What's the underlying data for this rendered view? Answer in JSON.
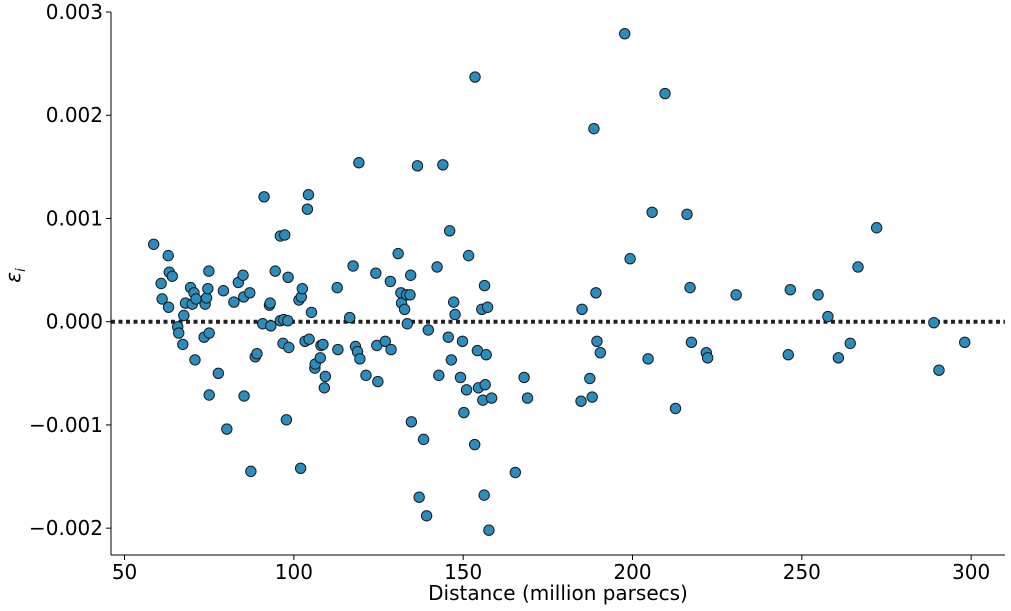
{
  "chart_data": {
    "type": "scatter",
    "title": "",
    "xlabel": "Distance (million parsecs)",
    "ylabel": "εi",
    "ylabel_base": "ε",
    "ylabel_sub": "i",
    "xlim": [
      46,
      310
    ],
    "ylim": [
      -0.00226,
      0.003
    ],
    "xticks": [
      50,
      100,
      150,
      200,
      250,
      300
    ],
    "xtick_labels": [
      "50",
      "100",
      "150",
      "200",
      "250",
      "300"
    ],
    "yticks": [
      -0.002,
      -0.001,
      0.0,
      0.001,
      0.002,
      0.003
    ],
    "ytick_labels": [
      "−0.002",
      "−0.001",
      "0.000",
      "0.001",
      "0.002",
      "0.003"
    ],
    "grid": false,
    "reference_line": {
      "y": 0.0,
      "style": "dotted"
    },
    "marker_color": "#2b8cbe",
    "marker_edge": "#1a1a1a",
    "points": [
      {
        "x": 58.6,
        "y": 0.00075
      },
      {
        "x": 60.8,
        "y": 0.00037
      },
      {
        "x": 61.1,
        "y": 0.00022
      },
      {
        "x": 62.9,
        "y": 0.00064
      },
      {
        "x": 63.0,
        "y": 0.00014
      },
      {
        "x": 63.2,
        "y": 0.00048
      },
      {
        "x": 64.1,
        "y": 0.00044
      },
      {
        "x": 65.7,
        "y": -5e-05
      },
      {
        "x": 66.0,
        "y": -0.00011
      },
      {
        "x": 67.2,
        "y": -0.00022
      },
      {
        "x": 67.5,
        "y": 6e-05
      },
      {
        "x": 68.0,
        "y": 0.00018
      },
      {
        "x": 69.5,
        "y": 0.00033
      },
      {
        "x": 70.0,
        "y": 0.00017
      },
      {
        "x": 70.5,
        "y": 0.00028
      },
      {
        "x": 70.8,
        "y": -0.00037
      },
      {
        "x": 71.1,
        "y": 0.00022
      },
      {
        "x": 73.5,
        "y": -0.00015
      },
      {
        "x": 73.8,
        "y": 0.00017
      },
      {
        "x": 74.2,
        "y": 0.00023
      },
      {
        "x": 74.6,
        "y": 0.00032
      },
      {
        "x": 74.9,
        "y": 0.00049
      },
      {
        "x": 75.0,
        "y": -0.00011
      },
      {
        "x": 75.0,
        "y": -0.00071
      },
      {
        "x": 77.7,
        "y": -0.0005
      },
      {
        "x": 79.2,
        "y": 0.0003
      },
      {
        "x": 80.2,
        "y": -0.00104
      },
      {
        "x": 82.3,
        "y": 0.00019
      },
      {
        "x": 83.6,
        "y": 0.00038
      },
      {
        "x": 85.0,
        "y": 0.00045
      },
      {
        "x": 85.2,
        "y": 0.00024
      },
      {
        "x": 85.3,
        "y": -0.00072
      },
      {
        "x": 87.0,
        "y": 0.00028
      },
      {
        "x": 87.3,
        "y": -0.00145
      },
      {
        "x": 88.6,
        "y": -0.00034
      },
      {
        "x": 89.1,
        "y": -0.00031
      },
      {
        "x": 90.8,
        "y": -2e-05
      },
      {
        "x": 91.2,
        "y": 0.00121
      },
      {
        "x": 92.8,
        "y": 0.00016
      },
      {
        "x": 93.0,
        "y": 0.00018
      },
      {
        "x": 93.2,
        "y": -4e-05
      },
      {
        "x": 94.5,
        "y": 0.00049
      },
      {
        "x": 96.0,
        "y": 1e-05
      },
      {
        "x": 96.0,
        "y": 0.00083
      },
      {
        "x": 96.8,
        "y": -0.00021
      },
      {
        "x": 97.0,
        "y": 2e-05
      },
      {
        "x": 97.3,
        "y": 0.00084
      },
      {
        "x": 97.8,
        "y": -0.00095
      },
      {
        "x": 98.2,
        "y": 1e-05
      },
      {
        "x": 98.3,
        "y": 0.00043
      },
      {
        "x": 98.5,
        "y": -0.00025
      },
      {
        "x": 101.5,
        "y": 0.00021
      },
      {
        "x": 102.0,
        "y": -0.00142
      },
      {
        "x": 102.2,
        "y": 0.00024
      },
      {
        "x": 102.5,
        "y": 0.00032
      },
      {
        "x": 103.3,
        "y": -0.00019
      },
      {
        "x": 104.0,
        "y": 0.00109
      },
      {
        "x": 104.3,
        "y": 0.00123
      },
      {
        "x": 104.5,
        "y": -0.00017
      },
      {
        "x": 105.2,
        "y": 9e-05
      },
      {
        "x": 106.2,
        "y": -0.00045
      },
      {
        "x": 106.3,
        "y": -0.00041
      },
      {
        "x": 107.8,
        "y": -0.00035
      },
      {
        "x": 108.0,
        "y": -0.00023
      },
      {
        "x": 108.6,
        "y": -0.00022
      },
      {
        "x": 109.0,
        "y": -0.00064
      },
      {
        "x": 109.3,
        "y": -0.00053
      },
      {
        "x": 112.8,
        "y": 0.00033
      },
      {
        "x": 113.0,
        "y": -0.00027
      },
      {
        "x": 116.5,
        "y": 4e-05
      },
      {
        "x": 117.5,
        "y": 0.00054
      },
      {
        "x": 118.2,
        "y": -0.00024
      },
      {
        "x": 118.8,
        "y": -0.00029
      },
      {
        "x": 119.2,
        "y": 0.00154
      },
      {
        "x": 119.5,
        "y": -0.00036
      },
      {
        "x": 121.3,
        "y": -0.00052
      },
      {
        "x": 124.2,
        "y": 0.00047
      },
      {
        "x": 124.5,
        "y": -0.00023
      },
      {
        "x": 124.8,
        "y": -0.00058
      },
      {
        "x": 127.0,
        "y": -0.00019
      },
      {
        "x": 128.5,
        "y": 0.00039
      },
      {
        "x": 128.7,
        "y": -0.00027
      },
      {
        "x": 130.8,
        "y": 0.00066
      },
      {
        "x": 131.6,
        "y": 0.00028
      },
      {
        "x": 131.8,
        "y": 0.00018
      },
      {
        "x": 132.7,
        "y": 0.00012
      },
      {
        "x": 133.3,
        "y": 0.00026
      },
      {
        "x": 133.5,
        "y": -2e-05
      },
      {
        "x": 134.3,
        "y": 0.00026
      },
      {
        "x": 134.5,
        "y": 0.00045
      },
      {
        "x": 134.7,
        "y": -0.00097
      },
      {
        "x": 136.5,
        "y": 0.00151
      },
      {
        "x": 137.0,
        "y": -0.0017
      },
      {
        "x": 138.3,
        "y": -0.00114
      },
      {
        "x": 139.2,
        "y": -0.00188
      },
      {
        "x": 139.7,
        "y": -8e-05
      },
      {
        "x": 142.3,
        "y": 0.00053
      },
      {
        "x": 142.8,
        "y": -0.00052
      },
      {
        "x": 144.0,
        "y": 0.00152
      },
      {
        "x": 145.6,
        "y": -0.00015
      },
      {
        "x": 146.0,
        "y": 0.00088
      },
      {
        "x": 146.5,
        "y": -0.00037
      },
      {
        "x": 147.2,
        "y": 0.00019
      },
      {
        "x": 147.6,
        "y": 7e-05
      },
      {
        "x": 149.2,
        "y": -0.00054
      },
      {
        "x": 149.8,
        "y": -0.00019
      },
      {
        "x": 150.2,
        "y": -0.00088
      },
      {
        "x": 151.0,
        "y": -0.00066
      },
      {
        "x": 151.6,
        "y": 0.00064
      },
      {
        "x": 153.4,
        "y": -0.00119
      },
      {
        "x": 153.5,
        "y": 0.00237
      },
      {
        "x": 154.2,
        "y": -0.00028
      },
      {
        "x": 154.5,
        "y": -0.00064
      },
      {
        "x": 155.5,
        "y": 0.00012
      },
      {
        "x": 155.8,
        "y": -0.00076
      },
      {
        "x": 156.2,
        "y": -0.00168
      },
      {
        "x": 156.3,
        "y": 0.00035
      },
      {
        "x": 156.5,
        "y": -0.00061
      },
      {
        "x": 156.8,
        "y": -0.00032
      },
      {
        "x": 157.2,
        "y": 0.00014
      },
      {
        "x": 157.6,
        "y": -0.00202
      },
      {
        "x": 158.4,
        "y": -0.00074
      },
      {
        "x": 165.4,
        "y": -0.00146
      },
      {
        "x": 168.0,
        "y": -0.00054
      },
      {
        "x": 169.0,
        "y": -0.00074
      },
      {
        "x": 184.8,
        "y": -0.00077
      },
      {
        "x": 185.1,
        "y": 0.00012
      },
      {
        "x": 187.4,
        "y": -0.00055
      },
      {
        "x": 188.1,
        "y": -0.00073
      },
      {
        "x": 188.6,
        "y": 0.00187
      },
      {
        "x": 189.2,
        "y": 0.00028
      },
      {
        "x": 189.5,
        "y": -0.00019
      },
      {
        "x": 190.5,
        "y": -0.0003
      },
      {
        "x": 197.7,
        "y": 0.00279
      },
      {
        "x": 199.3,
        "y": 0.00061
      },
      {
        "x": 204.6,
        "y": -0.00036
      },
      {
        "x": 205.8,
        "y": 0.00106
      },
      {
        "x": 209.6,
        "y": 0.00221
      },
      {
        "x": 212.7,
        "y": -0.00084
      },
      {
        "x": 216.1,
        "y": 0.00104
      },
      {
        "x": 217.0,
        "y": 0.00033
      },
      {
        "x": 217.4,
        "y": -0.0002
      },
      {
        "x": 221.8,
        "y": -0.0003
      },
      {
        "x": 222.2,
        "y": -0.00035
      },
      {
        "x": 230.6,
        "y": 0.00026
      },
      {
        "x": 246.0,
        "y": -0.00032
      },
      {
        "x": 246.6,
        "y": 0.00031
      },
      {
        "x": 254.8,
        "y": 0.00026
      },
      {
        "x": 257.7,
        "y": 5e-05
      },
      {
        "x": 260.8,
        "y": -0.00035
      },
      {
        "x": 264.3,
        "y": -0.00021
      },
      {
        "x": 266.6,
        "y": 0.00053
      },
      {
        "x": 272.1,
        "y": 0.00091
      },
      {
        "x": 289.0,
        "y": -1e-05
      },
      {
        "x": 290.5,
        "y": -0.00047
      },
      {
        "x": 298.1,
        "y": -0.0002
      }
    ]
  }
}
